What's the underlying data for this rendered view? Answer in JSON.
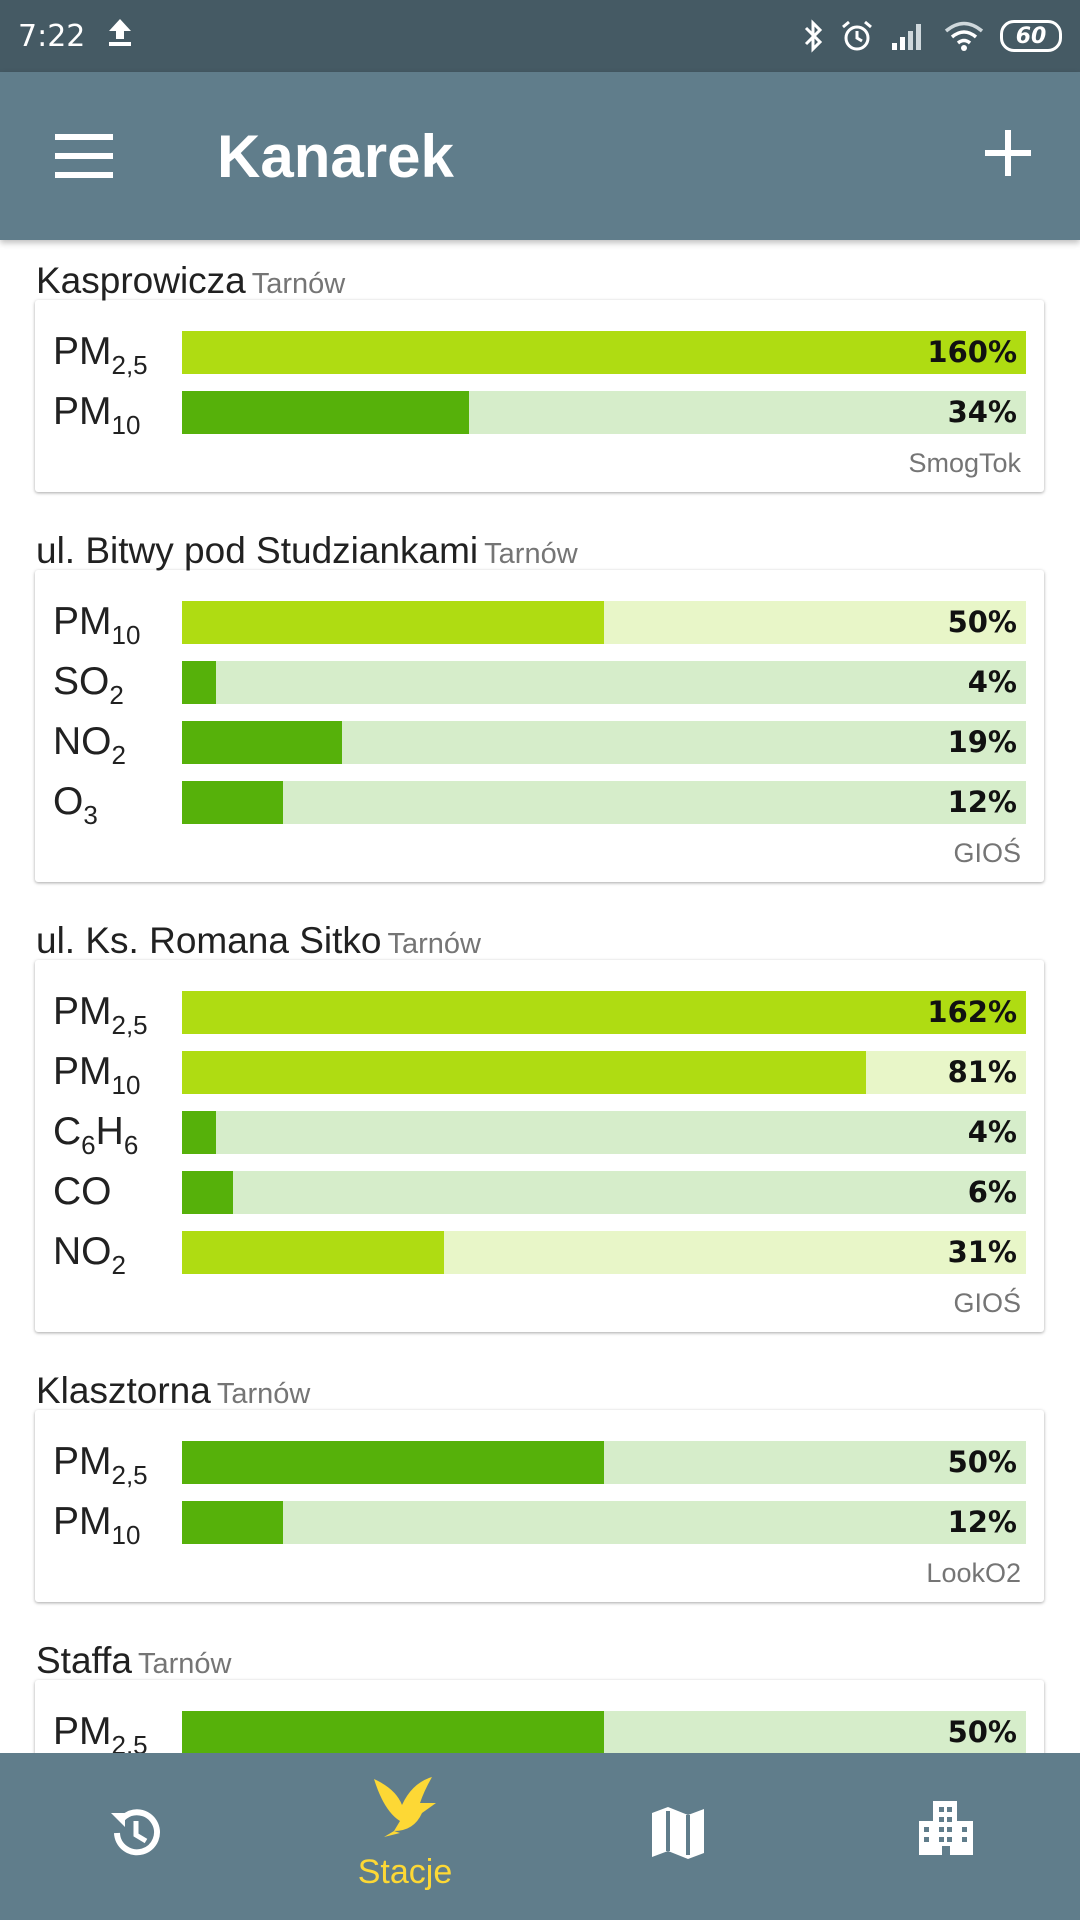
{
  "status_bar": {
    "time": "7:22",
    "battery": "60",
    "icons": [
      "upload-icon",
      "bluetooth-icon",
      "alarm-icon",
      "signal-icon",
      "wifi-icon",
      "battery-icon"
    ]
  },
  "app_bar": {
    "title": "Kanarek",
    "menu_icon": "hamburger-menu-icon",
    "add_icon": "plus-icon"
  },
  "colors": {
    "status_bar": "#455a64",
    "app_bar": "#607d8b",
    "nav_bar": "#607d8b",
    "good_fill": "#56b10a",
    "good_track": "#d6edca",
    "moderate_fill": "#afdc12",
    "moderate_track": "#e8f6c8",
    "active_nav": "#fdd835"
  },
  "stations": [
    {
      "name": "Kasprowicza",
      "city": "Tarnów",
      "source": "SmogTok",
      "readings": [
        {
          "label": "PM",
          "sub": "2,5",
          "percent": 160,
          "display": "160%",
          "level": "moderate"
        },
        {
          "label": "PM",
          "sub": "10",
          "percent": 34,
          "display": "34%",
          "level": "good"
        }
      ]
    },
    {
      "name": "ul. Bitwy pod Studziankami",
      "city": "Tarnów",
      "source": "GIOŚ",
      "readings": [
        {
          "label": "PM",
          "sub": "10",
          "percent": 50,
          "display": "50%",
          "level": "moderate"
        },
        {
          "label": "SO",
          "sub": "2",
          "percent": 4,
          "display": "4%",
          "level": "good"
        },
        {
          "label": "NO",
          "sub": "2",
          "percent": 19,
          "display": "19%",
          "level": "good"
        },
        {
          "label": "O",
          "sub": "3",
          "percent": 12,
          "display": "12%",
          "level": "good"
        }
      ]
    },
    {
      "name": "ul. Ks. Romana Sitko",
      "city": "Tarnów",
      "source": "GIOŚ",
      "readings": [
        {
          "label": "PM",
          "sub": "2,5",
          "percent": 162,
          "display": "162%",
          "level": "moderate"
        },
        {
          "label": "PM",
          "sub": "10",
          "percent": 81,
          "display": "81%",
          "level": "moderate"
        },
        {
          "label": "C6H6",
          "sub": "",
          "percent": 4,
          "display": "4%",
          "level": "good"
        },
        {
          "label": "CO",
          "sub": "",
          "percent": 6,
          "display": "6%",
          "level": "good"
        },
        {
          "label": "NO",
          "sub": "2",
          "percent": 31,
          "display": "31%",
          "level": "moderate"
        }
      ]
    },
    {
      "name": "Klasztorna",
      "city": "Tarnów",
      "source": "LookO2",
      "readings": [
        {
          "label": "PM",
          "sub": "2,5",
          "percent": 50,
          "display": "50%",
          "level": "good"
        },
        {
          "label": "PM",
          "sub": "10",
          "percent": 12,
          "display": "12%",
          "level": "good"
        }
      ]
    },
    {
      "name": "Staffa",
      "city": "Tarnów",
      "source": "",
      "readings": [
        {
          "label": "PM",
          "sub": "2,5",
          "percent": 50,
          "display": "50%",
          "level": "good"
        }
      ]
    }
  ],
  "bottom_nav": [
    {
      "icon": "history-icon",
      "label": ""
    },
    {
      "icon": "canary-bird-icon",
      "label": "Stacje",
      "active": true
    },
    {
      "icon": "map-icon",
      "label": ""
    },
    {
      "icon": "city-buildings-icon",
      "label": ""
    }
  ]
}
